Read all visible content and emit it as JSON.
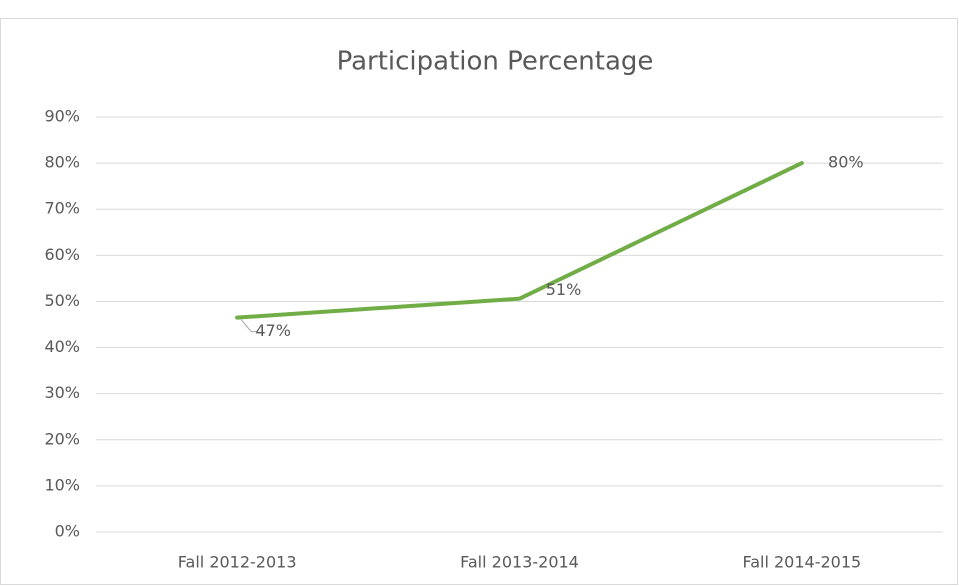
{
  "chart_data": {
    "type": "line",
    "title": "Participation Percentage",
    "categories": [
      "Fall 2012-2013",
      "Fall 2013-2014",
      "Fall 2014-2015"
    ],
    "values": [
      46.5,
      50.6,
      80
    ],
    "value_labels": [
      "47%",
      "51%",
      "80%"
    ],
    "color": "#70ad47",
    "ylim": [
      0,
      90
    ],
    "yticks": [
      {
        "value": 0,
        "label": "0%"
      },
      {
        "value": 10,
        "label": "10%"
      },
      {
        "value": 20,
        "label": "20%"
      },
      {
        "value": 30,
        "label": "30%"
      },
      {
        "value": 40,
        "label": "40%"
      },
      {
        "value": 50,
        "label": "50%"
      },
      {
        "value": 60,
        "label": "60%"
      },
      {
        "value": 70,
        "label": "70%"
      },
      {
        "value": 80,
        "label": "80%"
      },
      {
        "value": 90,
        "label": "90%"
      }
    ],
    "grid": true
  }
}
